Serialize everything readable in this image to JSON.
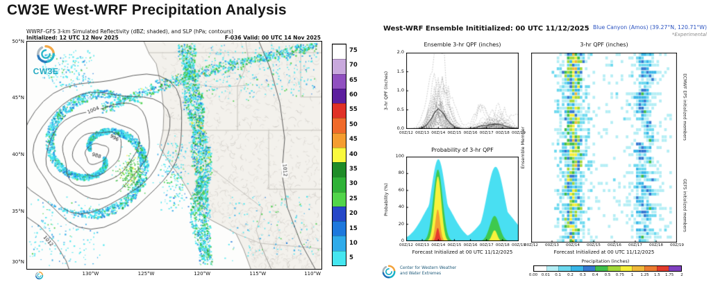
{
  "left": {
    "title": "CW3E West-WRF Precipitation Analysis",
    "subtitle": "WWRF-GFS 3-km Simulated Reflectivity (dBZ; shaded), and SLP (hPa; contours)",
    "initialized": "Initialized: 12 UTC 12 Nov 2025",
    "valid": "F-036  Valid: 00 UTC 14 Nov 2025",
    "logo_text": "CW3E",
    "lat_labels": [
      "50°N",
      "45°N",
      "40°N",
      "35°N",
      "30°N"
    ],
    "lon_labels": [
      "130°W",
      "125°W",
      "120°W",
      "115°W",
      "110°W"
    ],
    "colorbar": {
      "units": "dBZ",
      "values": [
        75,
        70,
        65,
        60,
        55,
        50,
        45,
        40,
        35,
        30,
        25,
        20,
        15,
        10,
        5
      ],
      "colors": [
        "#ffffff",
        "#c9a9dd",
        "#9050c0",
        "#5c1f9e",
        "#e03127",
        "#f06a2a",
        "#f59d30",
        "#f9f93d",
        "#1f8c28",
        "#2fb237",
        "#52d54a",
        "#2547c8",
        "#1d78dd",
        "#2fabea",
        "#45e6f0"
      ]
    }
  },
  "right": {
    "title": "West-WRF Ensemble Inititialized: 00 UTC 11/12/2025",
    "station": "Blue Canyon (Amos)  (39.27°N, 120.71°W)",
    "experimental": "*Experimental",
    "xticks": [
      "00Z/12",
      "00Z/13",
      "00Z/14",
      "00Z/15",
      "00Z/16",
      "00Z/17",
      "00Z/18",
      "00Z/19"
    ],
    "ens": {
      "title": "Ensemble 3-hr QPF (inches)",
      "ylabel": "3-hr QPF (inches)",
      "yticks": [
        "0.0",
        "0.5",
        "1.0",
        "1.5",
        "2.0"
      ]
    },
    "prob": {
      "title": "Probability of 3-hr QPF",
      "ylabel": "Probability (%)",
      "yticks": [
        "0",
        "20",
        "40",
        "60",
        "80",
        "100"
      ],
      "xlabel": "Forecast Initialized at 00 UTC 11/12/2025"
    },
    "heat": {
      "title": "3-hr QPF (inches)",
      "ylabel": "Ensemble Member",
      "right_top": "ECMWF EPS initialized members",
      "right_bottom": "GEFS initialized members",
      "xlabel": "Forecast Initialized at 00 UTC 11/12/2025"
    },
    "cbar": {
      "title": "Precipitation (inches)",
      "ticks": [
        "0.00",
        "0.01",
        "0.1",
        "0.2",
        "0.3",
        "0.4",
        "0.5",
        "0.75",
        "1",
        "1.25",
        "1.5",
        "1.75",
        "2"
      ]
    },
    "logo_caption": "Center for Western Weather and Water Extremes"
  },
  "chart_data": [
    {
      "type": "heatmap",
      "name": "simulated-reflectivity-map",
      "units": "dBZ",
      "proj": {
        "lon_w_range": [
          137,
          109
        ],
        "lat_range": [
          29.5,
          50
        ]
      },
      "dbz_palette": [
        "#45e6f0",
        "#2fabea",
        "#1d78dd",
        "#45cf49",
        "#2aa035",
        "#f7f441",
        "#f5a030"
      ],
      "low_center": {
        "lon_w": 130.4,
        "lat": 39.9
      },
      "slp_contour_interval_hpa": 4,
      "slp_labels": [
        {
          "text": "988",
          "lon_w": 130.4,
          "lat": 39.7,
          "rot": 0.3
        },
        {
          "text": "996",
          "lon_w": 128.7,
          "lat": 41.3,
          "rot": 0.5
        },
        {
          "text": "1004",
          "lon_w": 130.7,
          "lat": 43.8,
          "rot": -0.4
        },
        {
          "text": "1012",
          "lon_w": 112.5,
          "lat": 38.4,
          "rot": 1.5
        },
        {
          "text": "1012",
          "lon_w": 135.0,
          "lat": 32.0,
          "rot": 0.85
        }
      ],
      "bands": [
        {
          "name": "sierra-frontal-band",
          "path": [
            [
              121.9,
              49.7
            ],
            [
              121.4,
              45.8
            ],
            [
              120.8,
              42.0
            ],
            [
              120.3,
              38.3
            ],
            [
              120.7,
              34.8
            ],
            [
              120.0,
              30.2
            ]
          ],
          "halfwidth": 13,
          "n": 2100,
          "core": [
            0.34,
            0.66
          ],
          "seed": 2
        },
        {
          "name": "warm-front-band-ne",
          "path": [
            [
              129.8,
              44.0
            ],
            [
              123.0,
              46.6
            ],
            [
              116.0,
              48.3
            ],
            [
              109.6,
              49.7
            ]
          ],
          "halfwidth": 9,
          "n": 850,
          "core": [
            0.15,
            0.45
          ],
          "seed": 5
        }
      ],
      "scatter": [
        {
          "name": "pnw-echoes",
          "lon_w": [
            135.6,
            130.8
          ],
          "lat": [
            46.0,
            48.8
          ],
          "n": 170
        },
        {
          "name": "inland-nw-echoes",
          "lon_w": [
            120.0,
            109.6
          ],
          "lat": [
            45.0,
            49.7
          ],
          "n": 260
        },
        {
          "name": "coastal-echoes",
          "lon_w": [
            124.3,
            121.9
          ],
          "lat": [
            35.0,
            41.0
          ],
          "n": 170
        },
        {
          "name": "southeast-echoes",
          "lon_w": [
            118.0,
            109.6
          ],
          "lat": [
            30.4,
            36.0
          ],
          "n": 120
        },
        {
          "name": "sw-ocean-echoes",
          "lon_w": [
            136.6,
            130.2
          ],
          "lat": [
            30.0,
            35.6
          ],
          "n": 150
        }
      ]
    },
    {
      "type": "line",
      "name": "ensemble-3hr-qpf",
      "title": "Ensemble 3-hr QPF (inches)",
      "n_members": 42,
      "step_hours": 3,
      "n_steps": 56,
      "ylim": [
        0,
        2.0
      ],
      "events": [
        {
          "time_label": "00Z/14",
          "center_step": 16,
          "sigma_steps": 2.2,
          "typical_amp_in": 0.6,
          "max_amp_in": 2.0
        },
        {
          "time_label": "12Z/17",
          "center_step": 44,
          "sigma_steps": 2.8,
          "typical_amp_in": 0.25,
          "max_amp_in": 0.9
        }
      ]
    },
    {
      "type": "area",
      "name": "probability-of-3hr-qpf",
      "title": "Probability of 3-hr QPF",
      "ylim": [
        0,
        100
      ],
      "layers": [
        {
          "color": "#49dff2",
          "events": [
            {
              "c": 16,
              "s": 3.6,
              "a": 97
            },
            {
              "c": 16,
              "s": 7.2,
              "a": 52
            },
            {
              "c": 10,
              "s": 1.4,
              "a": 14
            },
            {
              "c": 44.5,
              "s": 4.4,
              "a": 88
            },
            {
              "c": 46,
              "s": 8,
              "a": 40
            }
          ]
        },
        {
          "color": "#3ec94e",
          "events": [
            {
              "c": 15.8,
              "s": 2.3,
              "a": 85
            },
            {
              "c": 44,
              "s": 2.4,
              "a": 30
            }
          ]
        },
        {
          "color": "#f6f23c",
          "events": [
            {
              "c": 15.8,
              "s": 1.7,
              "a": 77
            },
            {
              "c": 44,
              "s": 1.3,
              "a": 13
            }
          ]
        },
        {
          "color": "#f2a233",
          "events": [
            {
              "c": 15.7,
              "s": 1.15,
              "a": 38
            }
          ]
        },
        {
          "color": "#e63a2e",
          "events": [
            {
              "c": 15.7,
              "s": 0.8,
              "a": 16
            }
          ]
        }
      ]
    },
    {
      "type": "heatmap",
      "name": "ensemble-member-3hr-qpf",
      "title": "3-hr QPF (inches)",
      "rows": 53,
      "cols": 57,
      "ecmwf_rows": 32,
      "gefs_rows": 21,
      "bands": [
        {
          "center_step": 16,
          "qpf_range_in": [
            0.1,
            1.2
          ]
        },
        {
          "center_step": 44,
          "qpf_range_in": [
            0.02,
            0.5
          ]
        }
      ],
      "colorbar": {
        "bounds": [
          0,
          0.01,
          0.1,
          0.2,
          0.3,
          0.4,
          0.5,
          0.75,
          1.0,
          1.25,
          1.5,
          1.75
        ],
        "colors": [
          "#ffffff",
          "#b4eef5",
          "#6cd9ef",
          "#38b6e8",
          "#3579d2",
          "#3fbf4c",
          "#a3d93a",
          "#f5ef39",
          "#f0b83a",
          "#ec7c30",
          "#e23c2c",
          "#8040c0"
        ]
      }
    }
  ]
}
